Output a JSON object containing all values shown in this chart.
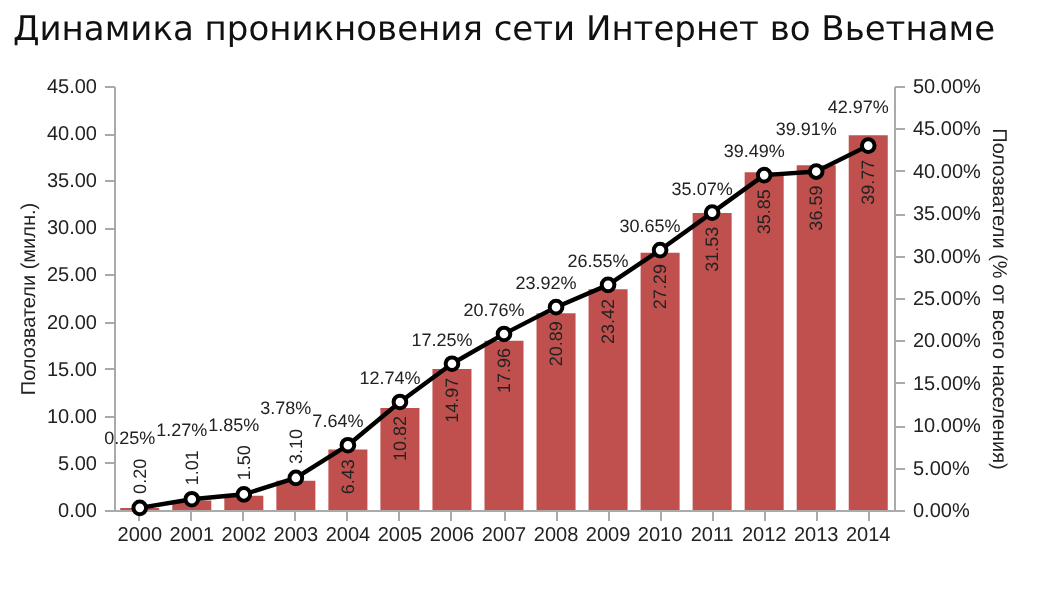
{
  "chart_data": {
    "type": "bar",
    "title": "Динамика проникновения сети Интернет во Вьетнаме",
    "ylabel": "Полозватели (милн.)",
    "y2label": "Полозватели (% от всего населения)",
    "categories": [
      "2000",
      "2001",
      "2002",
      "2003",
      "2004",
      "2005",
      "2006",
      "2007",
      "2008",
      "2009",
      "2010",
      "2011",
      "2012",
      "2013",
      "2014"
    ],
    "series": [
      {
        "color": "#c0504d",
        "values": [
          0.2,
          1.01,
          1.5,
          3.1,
          6.43,
          10.82,
          14.97,
          17.96,
          20.89,
          23.42,
          27.29,
          31.53,
          35.85,
          36.59,
          39.77
        ],
        "value_labels": [
          "0.20",
          "1.01",
          "1.50",
          "3.10",
          "6.43",
          "10.82",
          "14.97",
          "17.96",
          "20.89",
          "23.42",
          "27.29",
          "31.53",
          "35.85",
          "36.59",
          "39.77"
        ]
      },
      {
        "type": "line",
        "axis": "y2",
        "color": "#000000",
        "marker": "circle",
        "values": [
          0.25,
          1.27,
          1.85,
          3.78,
          7.64,
          12.74,
          17.25,
          20.76,
          23.92,
          26.55,
          30.65,
          35.07,
          39.49,
          39.91,
          42.97
        ],
        "value_labels": [
          "0.25%",
          "1.27%",
          "1.85%",
          "3.78%",
          "7.64%",
          "12.74%",
          "17.25%",
          "20.76%",
          "23.92%",
          "26.55%",
          "30.65%",
          "35.07%",
          "39.49%",
          "39.91%",
          "42.97%"
        ]
      }
    ],
    "ylim": [
      0,
      45
    ],
    "yticks": [
      {
        "value": 0,
        "label": "0.00"
      },
      {
        "value": 5,
        "label": "5.00"
      },
      {
        "value": 10,
        "label": "10.00"
      },
      {
        "value": 15,
        "label": "15.00"
      },
      {
        "value": 20,
        "label": "20.00"
      },
      {
        "value": 25,
        "label": "25.00"
      },
      {
        "value": 30,
        "label": "30.00"
      },
      {
        "value": 35,
        "label": "35.00"
      },
      {
        "value": 40,
        "label": "40.00"
      },
      {
        "value": 45,
        "label": "45.00"
      }
    ],
    "y2lim": [
      0,
      50
    ],
    "y2ticks": [
      {
        "value": 0,
        "label": "0.00%"
      },
      {
        "value": 5,
        "label": "5.00%"
      },
      {
        "value": 10,
        "label": "10.00%"
      },
      {
        "value": 15,
        "label": "15.00%"
      },
      {
        "value": 20,
        "label": "20.00%"
      },
      {
        "value": 25,
        "label": "25.00%"
      },
      {
        "value": 30,
        "label": "30.00%"
      },
      {
        "value": 35,
        "label": "35.00%"
      },
      {
        "value": 40,
        "label": "40.00%"
      },
      {
        "value": 45,
        "label": "45.00%"
      },
      {
        "value": 50,
        "label": "50.00%"
      }
    ],
    "grid": false
  }
}
